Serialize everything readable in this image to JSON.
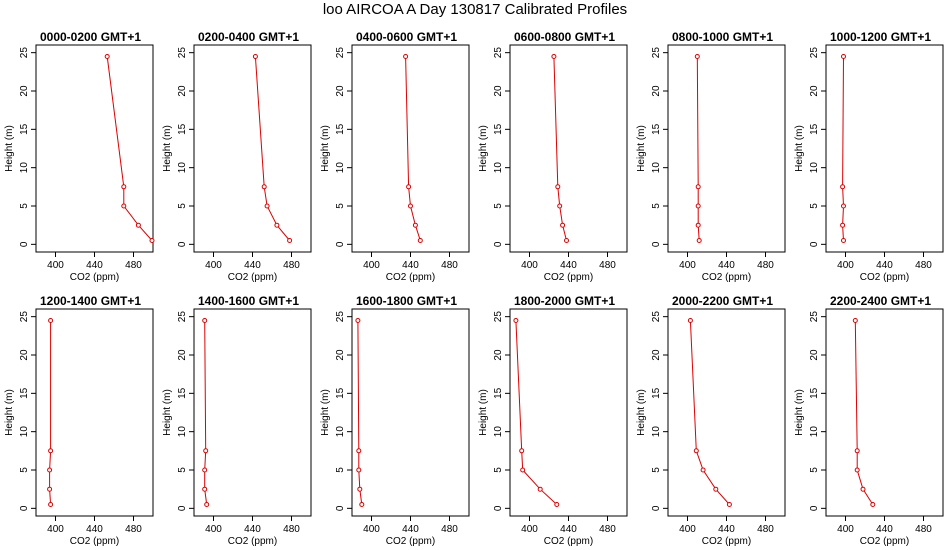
{
  "title": "loo AIRCOA A  Day 130817  Calibrated Profiles",
  "colors": {
    "line": "#dd0000",
    "axis": "#000000"
  },
  "chart_data": [
    {
      "type": "line",
      "title": "0000-0200 GMT+1",
      "xlabel": "CO2 (ppm)",
      "ylabel": "Height (m)",
      "xlim": [
        380,
        500
      ],
      "ylim": [
        -1,
        26
      ],
      "xticks": [
        400,
        440,
        480
      ],
      "yticks": [
        0,
        5,
        10,
        15,
        20,
        25
      ],
      "series": [
        {
          "x": [
            499,
            485,
            470,
            470,
            453
          ],
          "y": [
            0.5,
            2.5,
            5,
            7.5,
            24.5
          ]
        }
      ]
    },
    {
      "type": "line",
      "title": "0200-0400 GMT+1",
      "xlabel": "CO2 (ppm)",
      "ylabel": "Height (m)",
      "xlim": [
        380,
        500
      ],
      "ylim": [
        -1,
        26
      ],
      "xticks": [
        400,
        440,
        480
      ],
      "yticks": [
        0,
        5,
        10,
        15,
        20,
        25
      ],
      "series": [
        {
          "x": [
            478,
            465,
            455,
            452,
            443
          ],
          "y": [
            0.5,
            2.5,
            5,
            7.5,
            24.5
          ]
        }
      ]
    },
    {
      "type": "line",
      "title": "0400-0600 GMT+1",
      "xlabel": "CO2 (ppm)",
      "ylabel": "Height (m)",
      "xlim": [
        380,
        500
      ],
      "ylim": [
        -1,
        26
      ],
      "xticks": [
        400,
        440,
        480
      ],
      "yticks": [
        0,
        5,
        10,
        15,
        20,
        25
      ],
      "series": [
        {
          "x": [
            450,
            445,
            440,
            438,
            435
          ],
          "y": [
            0.5,
            2.5,
            5,
            7.5,
            24.5
          ]
        }
      ]
    },
    {
      "type": "line",
      "title": "0600-0800 GMT+1",
      "xlabel": "CO2 (ppm)",
      "ylabel": "Height (m)",
      "xlim": [
        380,
        500
      ],
      "ylim": [
        -1,
        26
      ],
      "xticks": [
        400,
        440,
        480
      ],
      "yticks": [
        0,
        5,
        10,
        15,
        20,
        25
      ],
      "series": [
        {
          "x": [
            438,
            434,
            431,
            429,
            425
          ],
          "y": [
            0.5,
            2.5,
            5,
            7.5,
            24.5
          ]
        }
      ]
    },
    {
      "type": "line",
      "title": "0800-1000 GMT+1",
      "xlabel": "CO2 (ppm)",
      "ylabel": "Height (m)",
      "xlim": [
        380,
        500
      ],
      "ylim": [
        -1,
        26
      ],
      "xticks": [
        400,
        440,
        480
      ],
      "yticks": [
        0,
        5,
        10,
        15,
        20,
        25
      ],
      "series": [
        {
          "x": [
            412,
            411,
            411,
            411,
            410
          ],
          "y": [
            0.5,
            2.5,
            5,
            7.5,
            24.5
          ]
        }
      ]
    },
    {
      "type": "line",
      "title": "1000-1200 GMT+1",
      "xlabel": "CO2 (ppm)",
      "ylabel": "Height (m)",
      "xlim": [
        380,
        500
      ],
      "ylim": [
        -1,
        26
      ],
      "xticks": [
        400,
        440,
        480
      ],
      "yticks": [
        0,
        5,
        10,
        15,
        20,
        25
      ],
      "series": [
        {
          "x": [
            398,
            397,
            398,
            397,
            398
          ],
          "y": [
            0.5,
            2.5,
            5,
            7.5,
            24.5
          ]
        }
      ]
    },
    {
      "type": "line",
      "title": "1200-1400 GMT+1",
      "xlabel": "CO2 (ppm)",
      "ylabel": "Height (m)",
      "xlim": [
        380,
        500
      ],
      "ylim": [
        -1,
        26
      ],
      "xticks": [
        400,
        440,
        480
      ],
      "yticks": [
        0,
        5,
        10,
        15,
        20,
        25
      ],
      "series": [
        {
          "x": [
            395,
            394,
            394,
            395,
            395
          ],
          "y": [
            0.5,
            2.5,
            5,
            7.5,
            24.5
          ]
        }
      ]
    },
    {
      "type": "line",
      "title": "1400-1600 GMT+1",
      "xlabel": "CO2 (ppm)",
      "ylabel": "Height (m)",
      "xlim": [
        380,
        500
      ],
      "ylim": [
        -1,
        26
      ],
      "xticks": [
        400,
        440,
        480
      ],
      "yticks": [
        0,
        5,
        10,
        15,
        20,
        25
      ],
      "series": [
        {
          "x": [
            393,
            391,
            391,
            392,
            391
          ],
          "y": [
            0.5,
            2.5,
            5,
            7.5,
            24.5
          ]
        }
      ]
    },
    {
      "type": "line",
      "title": "1600-1800 GMT+1",
      "xlabel": "CO2 (ppm)",
      "ylabel": "Height (m)",
      "xlim": [
        380,
        500
      ],
      "ylim": [
        -1,
        26
      ],
      "xticks": [
        400,
        440,
        480
      ],
      "yticks": [
        0,
        5,
        10,
        15,
        20,
        25
      ],
      "series": [
        {
          "x": [
            390,
            388,
            387,
            387,
            386
          ],
          "y": [
            0.5,
            2.5,
            5,
            7.5,
            24.5
          ]
        }
      ]
    },
    {
      "type": "line",
      "title": "1800-2000 GMT+1",
      "xlabel": "CO2 (ppm)",
      "ylabel": "Height (m)",
      "xlim": [
        380,
        500
      ],
      "ylim": [
        -1,
        26
      ],
      "xticks": [
        400,
        440,
        480
      ],
      "yticks": [
        0,
        5,
        10,
        15,
        20,
        25
      ],
      "series": [
        {
          "x": [
            428,
            411,
            393,
            392,
            386
          ],
          "y": [
            0.5,
            2.5,
            5,
            7.5,
            24.5
          ]
        }
      ]
    },
    {
      "type": "line",
      "title": "2000-2200 GMT+1",
      "xlabel": "CO2 (ppm)",
      "ylabel": "Height (m)",
      "xlim": [
        380,
        500
      ],
      "ylim": [
        -1,
        26
      ],
      "xticks": [
        400,
        440,
        480
      ],
      "yticks": [
        0,
        5,
        10,
        15,
        20,
        25
      ],
      "series": [
        {
          "x": [
            443,
            429,
            416,
            409,
            403
          ],
          "y": [
            0.5,
            2.5,
            5,
            7.5,
            24.5
          ]
        }
      ]
    },
    {
      "type": "line",
      "title": "2200-2400 GMT+1",
      "xlabel": "CO2 (ppm)",
      "ylabel": "Height (m)",
      "xlim": [
        380,
        500
      ],
      "ylim": [
        -1,
        26
      ],
      "xticks": [
        400,
        440,
        480
      ],
      "yticks": [
        0,
        5,
        10,
        15,
        20,
        25
      ],
      "series": [
        {
          "x": [
            428,
            418,
            412,
            412,
            410
          ],
          "y": [
            0.5,
            2.5,
            5,
            7.5,
            24.5
          ]
        }
      ]
    }
  ]
}
